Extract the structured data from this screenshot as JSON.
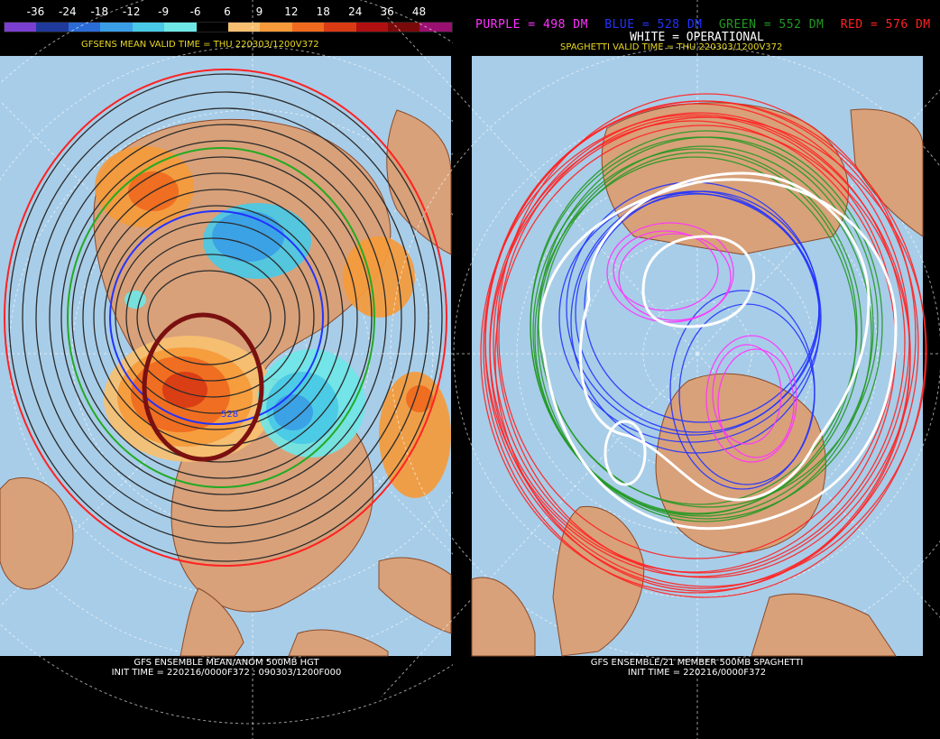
{
  "left_panel": {
    "colorbar": {
      "ticks": [
        "-36",
        "-24",
        "-18",
        "-12",
        "-9",
        "-6",
        "6",
        "9",
        "12",
        "18",
        "24",
        "36",
        "48"
      ],
      "colors": [
        "#7a3fd0",
        "#1f3a9a",
        "#2b6bd6",
        "#3a9ee6",
        "#49c9e6",
        "#6fe6e6",
        "#000000",
        "#f7c070",
        "#f59a3a",
        "#ef6a1e",
        "#d83a14",
        "#b01010",
        "#7a0a0a",
        "#9a1070"
      ]
    },
    "valid_time": "GFSENS MEAN VALID TIME = THU 220303/1200V372",
    "contour_label": "528",
    "caption_line1": "GFS ENSEMBLE MEAN/ANOM 500MB HGT",
    "caption_line2": "INIT TIME = 220216/0000F372 : 090303/1200F000"
  },
  "right_panel": {
    "legend": {
      "purple": {
        "text": "PURPLE = 498 DM",
        "color": "#ff33ff"
      },
      "blue": {
        "text": "BLUE = 528 DM",
        "color": "#2233ff"
      },
      "green": {
        "text": "GREEN = 552 DM",
        "color": "#229922"
      },
      "red": {
        "text": "RED = 576 DM",
        "color": "#ff2222"
      }
    },
    "white_label": "WHITE = OPERATIONAL",
    "valid_time": "SPAGHETTI VALID TIME = THU 220303/1200V372",
    "caption_line1": "GFS ENSEMBLE/21 MEMBER 500MB SPAGHETTI",
    "caption_line2": "INIT TIME = 220216/0000F372"
  },
  "colors": {
    "ocean": "#a8cde8",
    "land": "#d8a17a",
    "coast": "#8a4a2a",
    "contour": "#2b2b2b",
    "ring": "#7a1010"
  }
}
